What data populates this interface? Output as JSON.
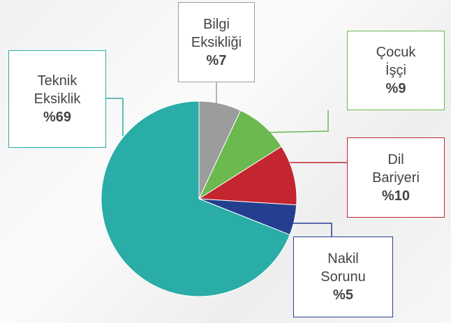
{
  "chart_data": {
    "type": "pie",
    "categories": [
      "Bilgi Eksikliği",
      "Çocuk İşçi",
      "Dil Bariyeri",
      "Nakil Sorunu",
      "Teknik Eksiklik"
    ],
    "values": [
      7,
      9,
      10,
      5,
      69
    ],
    "value_labels": [
      "%7",
      "%9",
      "%10",
      "%5",
      "%69"
    ],
    "colors": [
      "#9b9d9d",
      "#6bb94f",
      "#c3262e",
      "#243f8f",
      "#2aaca7"
    ]
  }
}
